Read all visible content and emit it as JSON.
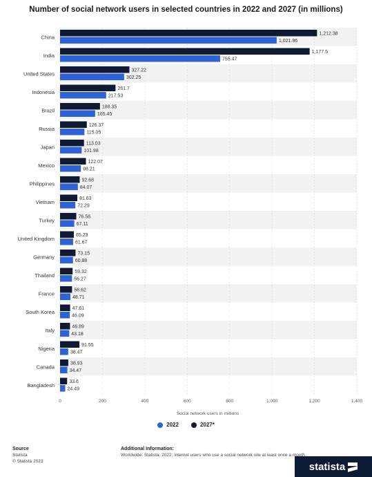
{
  "title": "Number of social network users in selected countries in 2022 and 2027 (in millions)",
  "chart_data": {
    "type": "bar",
    "orientation": "horizontal",
    "categories": [
      "China",
      "India",
      "United States",
      "Indonesia",
      "Brazil",
      "Russia",
      "Japan",
      "Mexico",
      "Philippines",
      "Vietnam",
      "Turkey",
      "United Kingdom",
      "Germany",
      "Thailand",
      "France",
      "South Korea",
      "Italy",
      "Nigeria",
      "Canada",
      "Bangladesh"
    ],
    "series": [
      {
        "name": "2027*",
        "color": "#101b33",
        "values": [
          1212.38,
          1177.5,
          327.22,
          261.7,
          188.35,
          126.37,
          113.03,
          122.07,
          92.68,
          81.63,
          76.58,
          65.23,
          73.15,
          59.32,
          56.62,
          47.61,
          46.89,
          91.55,
          38.93,
          33.6
        ]
      },
      {
        "name": "2022",
        "color": "#2f62d5",
        "values": [
          1021.96,
          755.47,
          302.25,
          217.53,
          165.45,
          115.05,
          101.98,
          98.21,
          84.07,
          72.29,
          67.11,
          61.67,
          60.88,
          56.27,
          48.71,
          46.09,
          43.18,
          38.47,
          34.47,
          24.49
        ]
      }
    ],
    "value_labels_2027": [
      "1,212.38",
      "1,177.5",
      "327.22",
      "261.7",
      "188.35",
      "126.37",
      "113.03",
      "122.07",
      "92.68",
      "81.63",
      "76.58",
      "65.23",
      "73.15",
      "59.32",
      "56.62",
      "47.61",
      "46.89",
      "91.55",
      "38.93",
      "33.6"
    ],
    "value_labels_2022": [
      "1,021.96",
      "755.47",
      "302.25",
      "217.53",
      "165.45",
      "115.05",
      "101.98",
      "98.21",
      "84.07",
      "72.29",
      "67.11",
      "61.67",
      "60.88",
      "56.27",
      "48.71",
      "46.09",
      "43.18",
      "38.47",
      "34.47",
      "24.49"
    ],
    "xlabel": "Social network users in millions",
    "xlim": [
      0,
      1400
    ],
    "ticks": [
      0,
      200,
      400,
      600,
      800,
      1000,
      1200,
      1400
    ],
    "tick_labels": [
      "0",
      "200",
      "400",
      "600",
      "800",
      "1,000",
      "1,200",
      "1,400"
    ],
    "grid": true,
    "legend_position": "bottom"
  },
  "legend": {
    "item_2022": "2022",
    "item_2027": "2027*"
  },
  "footer": {
    "source_heading": "Source",
    "source_line1": "Statista",
    "source_line2": "© Statista 2023",
    "info_heading": "Additional Information:",
    "info_text": "Worldwide; Statista; 2022; internet users who use a social network site at least once a month"
  },
  "brand": {
    "name": "statista"
  }
}
